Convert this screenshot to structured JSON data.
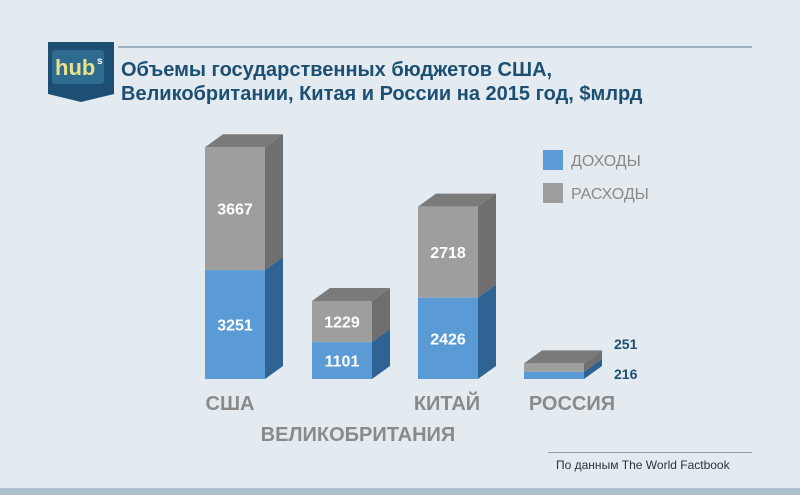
{
  "logo": {
    "text": "hub",
    "superscript": "s"
  },
  "title": {
    "line1": "Объемы государственных бюджетов США,",
    "line2": "Великобритании, Китая и России на 2015 год, $млрд"
  },
  "source": "По данным The World Factbook",
  "colors": {
    "revenue_front": "#5b9bd5",
    "revenue_side": "#2e6394",
    "spending_front": "#9e9e9e",
    "spending_side": "#6f6f6f",
    "spending_top": "#7a7a7a",
    "category_label": "#8a8a8a",
    "title": "#1d4f72"
  },
  "chart_data": {
    "type": "bar",
    "stacked": true,
    "categories": [
      "США",
      "ВЕЛИКОБРИТАНИЯ",
      "КИТАЙ",
      "РОССИЯ"
    ],
    "series": [
      {
        "name": "ДОХОДЫ",
        "values": [
          3251,
          1101,
          2426,
          216
        ]
      },
      {
        "name": "РАСХОДЫ",
        "values": [
          3667,
          1229,
          2718,
          251
        ]
      }
    ],
    "value_labels": {
      "ДОХОДЫ": [
        "3251",
        "1101",
        "2426",
        "216"
      ],
      "РАСХОДЫ": [
        "3667",
        "1229",
        "2718",
        "251"
      ]
    },
    "legend_position": "top-right"
  }
}
